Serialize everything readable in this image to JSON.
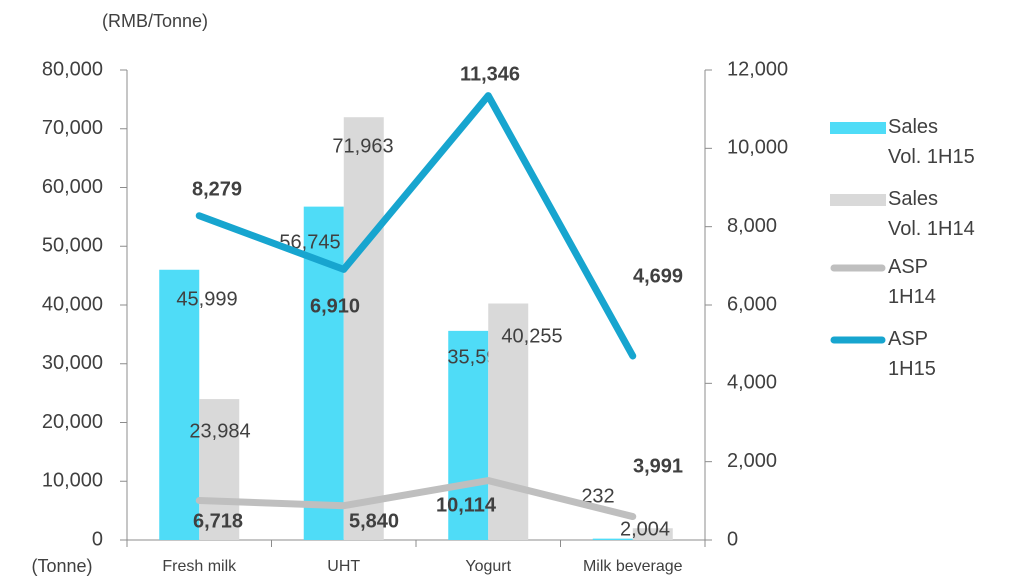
{
  "chart_data": {
    "type": "bar_line",
    "y2_label": "(RMB/Tonne)",
    "y_label": "(Tonne)",
    "categories": [
      "Fresh milk",
      "UHT",
      "Yogurt",
      "Milk beverage"
    ],
    "series": [
      {
        "name": "Sales Vol. 1H15",
        "type": "bar",
        "color": "#4fdcf7",
        "values": [
          45999,
          56745,
          35596,
          232
        ],
        "value_labels": [
          "45,999",
          "56,745",
          "35,596",
          "232"
        ]
      },
      {
        "name": "Sales Vol. 1H14",
        "type": "bar",
        "color": "#d9d9d9",
        "values": [
          23984,
          71963,
          40255,
          2004
        ],
        "value_labels": [
          "23,984",
          "71,963",
          "40,255",
          "2,004"
        ]
      },
      {
        "name": "ASP 1H14",
        "type": "line",
        "color": "#bfbfbf",
        "label_color": "#7b0c0c",
        "values": [
          6718,
          5840,
          10114,
          3991
        ],
        "value_labels": [
          "6,718",
          "5,840",
          "10,114",
          "3,991"
        ]
      },
      {
        "name": "ASP 1H15",
        "type": "line",
        "axis": "y2",
        "color": "#17a5cf",
        "label_color": "#3a4048",
        "values": [
          8279,
          6910,
          11346,
          4699
        ],
        "value_labels": [
          "8,279",
          "6,910",
          "11,346",
          "4,699"
        ]
      }
    ],
    "ylim": [
      0,
      80000
    ],
    "yticks": [
      0,
      {
        "value": 10000,
        "label": "10,000"
      },
      {
        "value": 20000,
        "label": "20,000"
      },
      {
        "value": 30000,
        "label": "30,000"
      },
      {
        "value": 40000,
        "label": "40,000"
      },
      {
        "value": 50000,
        "label": "50,000"
      },
      {
        "value": 60000,
        "label": "60,000"
      },
      {
        "value": 70000,
        "label": "70,000"
      },
      {
        "value": 80000,
        "label": "80,000"
      }
    ],
    "y2lim": [
      0,
      12000
    ],
    "y2ticks": [
      0,
      {
        "value": 2000,
        "label": "2,000"
      },
      {
        "value": 4000,
        "label": "4,000"
      },
      {
        "value": 6000,
        "label": "6,000"
      },
      {
        "value": 8000,
        "label": "8,000"
      },
      {
        "value": 10000,
        "label": "10,000"
      },
      {
        "value": 12000,
        "label": "12,000"
      }
    ]
  }
}
